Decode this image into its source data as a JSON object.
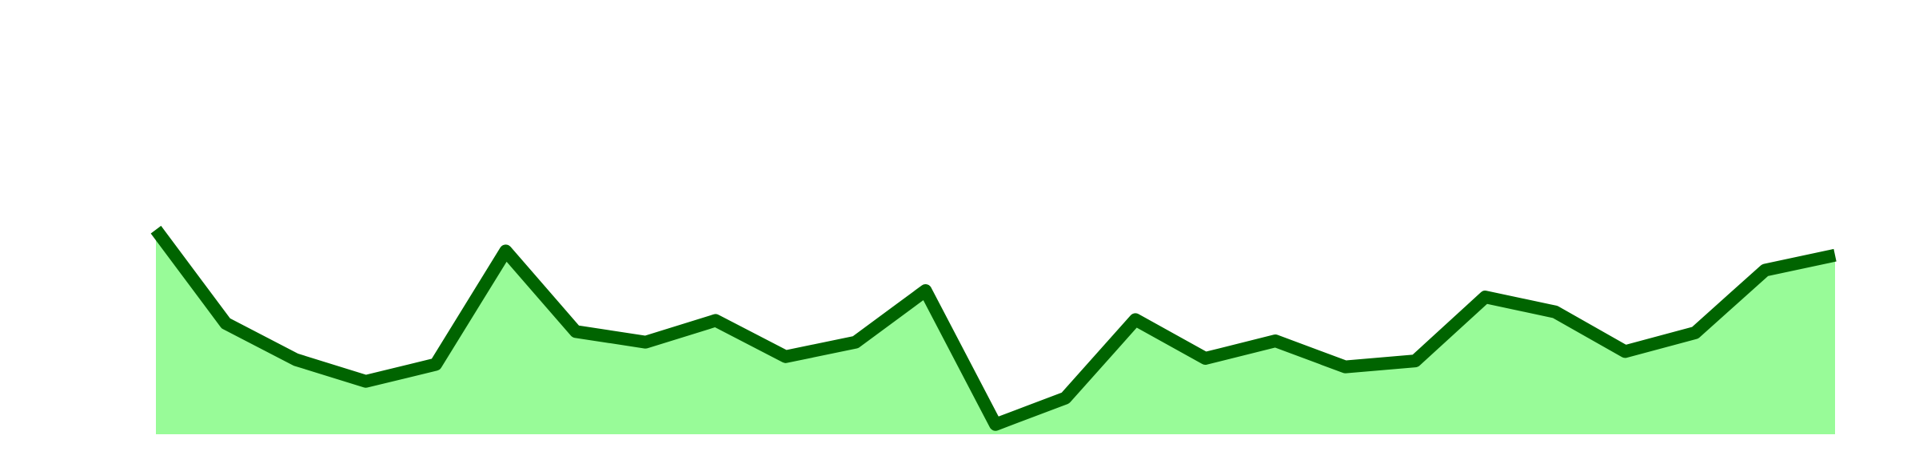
{
  "chart_data": {
    "type": "area",
    "title": "",
    "xlabel": "",
    "ylabel": "",
    "x": [
      1,
      2,
      3,
      4,
      5,
      6,
      7,
      8,
      9,
      10,
      11,
      12,
      13,
      14,
      15,
      16,
      17,
      18,
      19,
      20,
      21,
      22,
      23,
      24,
      25
    ],
    "y": [
      48,
      26,
      17.5,
      12.4,
      16.4,
      43,
      24.1,
      21.6,
      26.7,
      18.2,
      21.6,
      33.7,
      2.3,
      8.5,
      26.9,
      17.8,
      21.9,
      15.8,
      17.2,
      32.2,
      28.7,
      19.4,
      23.8,
      38.5,
      42
    ],
    "xlim": [
      1,
      25
    ],
    "ylim": [
      0,
      100
    ],
    "grid": false,
    "axes_visible": false,
    "colors": {
      "line": "#006400",
      "fill": "#98fb98",
      "background": "#ffffff"
    }
  }
}
